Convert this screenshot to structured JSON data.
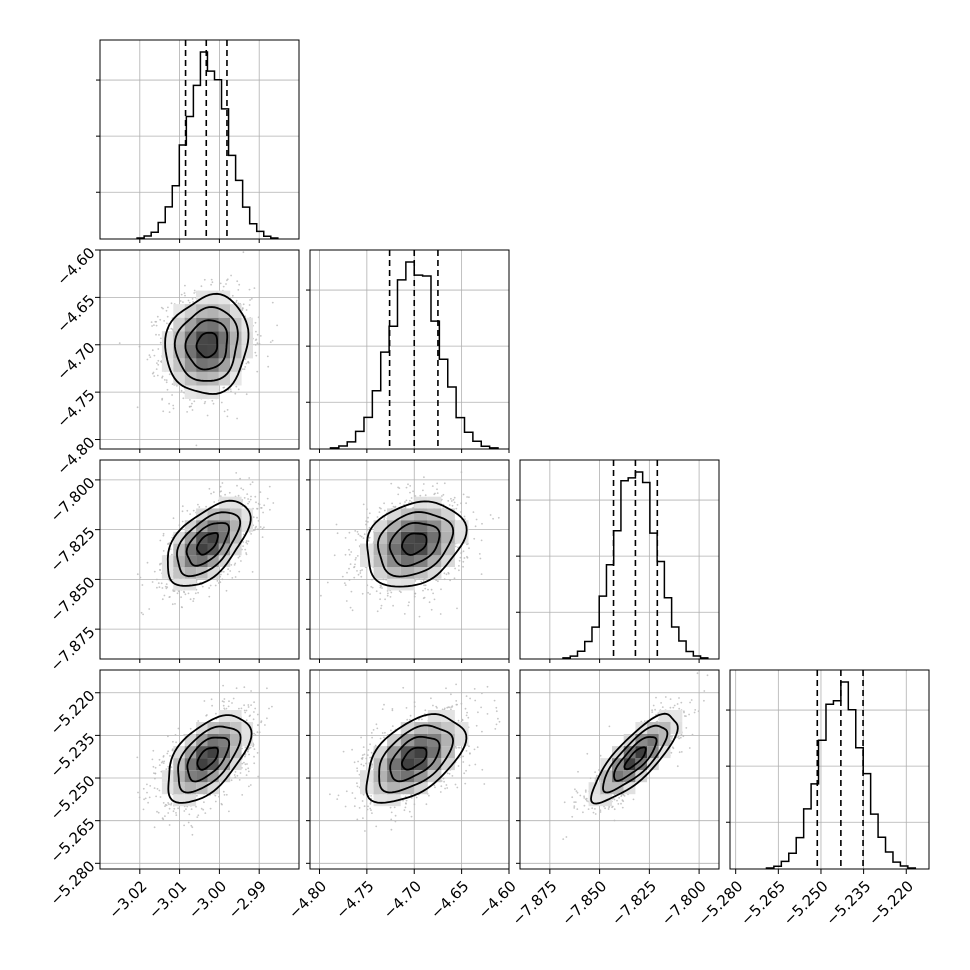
{
  "chart_data": {
    "type": "corner",
    "parameters": [
      {
        "mean": -3.003,
        "sd": 0.0052,
        "range": [
          -3.03,
          -2.98
        ],
        "ticks": [
          -3.02,
          -3.01,
          -3.0,
          -2.99
        ],
        "tick_labels": [
          "−3.02",
          "−3.01",
          "−3.00",
          "−2.99"
        ],
        "quantiles": [
          -3.0085,
          -3.0033,
          -2.9981
        ]
      },
      {
        "mean": -4.7,
        "sd": 0.026,
        "range": [
          -4.81,
          -4.6
        ],
        "ticks": [
          -4.8,
          -4.75,
          -4.7,
          -4.65,
          -4.6
        ],
        "tick_labels": [
          "−4.80",
          "−4.75",
          "−4.70",
          "−4.65",
          "−4.60"
        ],
        "quantiles": [
          -4.726,
          -4.7,
          -4.675
        ]
      },
      {
        "mean": -7.832,
        "sd": 0.0107,
        "range": [
          -7.89,
          -7.79
        ],
        "ticks": [
          -7.875,
          -7.85,
          -7.825,
          -7.8
        ],
        "tick_labels": [
          "−7.875",
          "−7.850",
          "−7.825",
          "−7.800"
        ],
        "quantiles": [
          -7.843,
          -7.832,
          -7.821
        ]
      },
      {
        "mean": -5.243,
        "sd": 0.0077,
        "range": [
          -5.282,
          -5.212
        ],
        "ticks": [
          -5.28,
          -5.265,
          -5.25,
          -5.235,
          -5.22
        ],
        "tick_labels": [
          "−5.280",
          "−5.265",
          "−5.250",
          "−5.235",
          "−5.220"
        ],
        "quantiles": [
          -5.2513,
          -5.243,
          -5.2352
        ]
      }
    ],
    "correlations": [
      {
        "row": 1,
        "col": 0,
        "rho": 0.1
      },
      {
        "row": 2,
        "col": 0,
        "rho": 0.55
      },
      {
        "row": 2,
        "col": 1,
        "rho": 0.25
      },
      {
        "row": 3,
        "col": 0,
        "rho": 0.55
      },
      {
        "row": 3,
        "col": 1,
        "rho": 0.5
      },
      {
        "row": 3,
        "col": 2,
        "rho": 0.8
      }
    ],
    "hist_bins": 20,
    "contour_levels_sigma": [
      0.5,
      1.0,
      1.5,
      2.0
    ],
    "scatter_points": 1400,
    "grid": true,
    "colors": {
      "ink": "#000000",
      "scatter": "#b8b8b8",
      "grid": "#b0b0b0",
      "background": "#ffffff"
    }
  }
}
